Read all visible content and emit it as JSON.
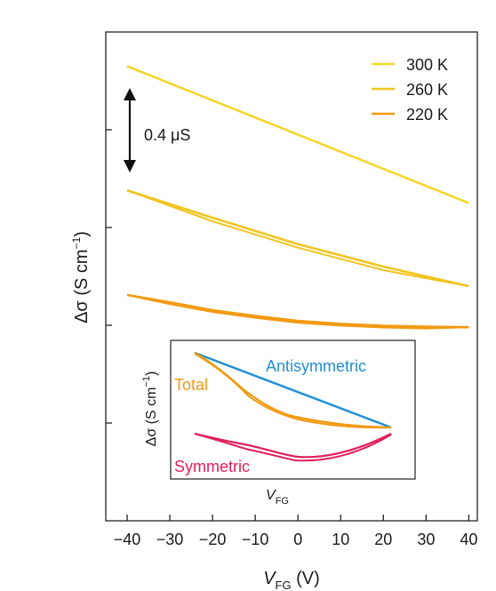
{
  "chart_data": {
    "type": "line",
    "xlabel": {
      "main": "V",
      "sub": "FG",
      "unit": " (V)"
    },
    "ylabel": {
      "main": "Δσ (S cm",
      "sup": "−1",
      "tail": ")"
    },
    "xlim": [
      -45,
      42
    ],
    "xticks": [
      -40,
      -30,
      -20,
      -10,
      0,
      10,
      20,
      30,
      40
    ],
    "xtick_labels": [
      "−40",
      "−30",
      "−20",
      "−10",
      "0",
      "10",
      "20",
      "30",
      "40"
    ],
    "ylim": [
      0,
      1.0
    ],
    "yticks": [
      0.2,
      0.4,
      0.6,
      0.8
    ],
    "grid": false,
    "legend_position": "top-right",
    "series": [
      {
        "name": "300 K",
        "color": "#f4d62e",
        "x": [
          -40,
          40
        ],
        "y": [
          0.93,
          0.65
        ]
      },
      {
        "name": "260 K",
        "color": "#f2c420",
        "x": [
          -40,
          -20,
          0,
          20,
          40
        ],
        "y": [
          0.676,
          0.62,
          0.566,
          0.52,
          0.48
        ]
      },
      {
        "name": "220 K",
        "color": "#f19a12",
        "x": [
          -40,
          -30,
          -20,
          -10,
          0,
          10,
          20,
          30,
          40
        ],
        "y": [
          0.462,
          0.447,
          0.431,
          0.419,
          0.409,
          0.403,
          0.399,
          0.397,
          0.396
        ]
      }
    ],
    "annotations": [
      {
        "text": "0.4 μS",
        "type": "double-arrow",
        "x": -40,
        "y_from": 0.72,
        "y_to": 0.88
      }
    ],
    "inset": {
      "xlabel": {
        "main": "V",
        "sub": "FG"
      },
      "ylabel": {
        "main": "Δσ (S cm",
        "sup": "−1",
        "tail": ")"
      },
      "series": [
        {
          "name": "Antisymmetric",
          "color": "#1f8fd4"
        },
        {
          "name": "Total",
          "color": "#f19a12"
        },
        {
          "name": "Symmetric",
          "color": "#e0205a"
        }
      ]
    }
  }
}
